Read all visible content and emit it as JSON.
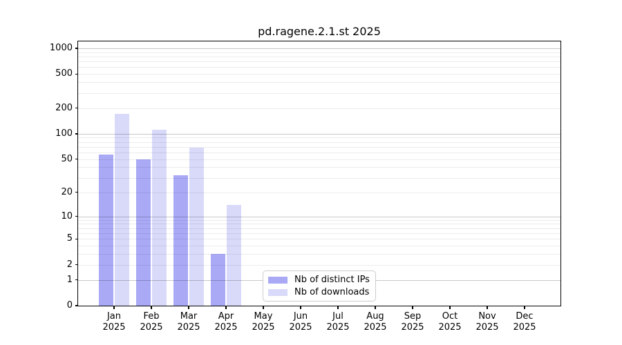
{
  "title": "pd.ragene.2.1.st 2025",
  "legend": {
    "items": [
      {
        "label": "Nb of distinct IPs",
        "series_key": "distinct_ips"
      },
      {
        "label": "Nb of downloads",
        "series_key": "downloads"
      }
    ]
  },
  "colors": {
    "distinct_ips": "#a9a9f6",
    "downloads": "#d9daf9",
    "axis": "#000000",
    "grid_major": "#c8c8c8",
    "grid_minor": "#ececec",
    "legend_border": "#cccccc"
  },
  "chart_data": {
    "type": "bar",
    "title": "pd.ragene.2.1.st 2025",
    "xlabel": "",
    "ylabel": "",
    "y_scale": "log1p",
    "ylim": [
      0,
      1200
    ],
    "grid": "horizontal major+minor, log spacing",
    "legend_position": "lower center-left inside plot",
    "categories": [
      "Jan 2025",
      "Feb 2025",
      "Mar 2025",
      "Apr 2025",
      "May 2025",
      "Jun 2025",
      "Jul 2025",
      "Aug 2025",
      "Sep 2025",
      "Oct 2025",
      "Nov 2025",
      "Dec 2025"
    ],
    "y_ticks": [
      0,
      1,
      2,
      5,
      10,
      20,
      50,
      100,
      200,
      500,
      1000
    ],
    "y_major_gridlines": [
      1,
      10,
      100,
      1000
    ],
    "series": [
      {
        "name": "Nb of distinct IPs",
        "color_key": "distinct_ips",
        "values": [
          57,
          50,
          32,
          3,
          null,
          null,
          null,
          null,
          null,
          null,
          null,
          null
        ]
      },
      {
        "name": "Nb of downloads",
        "color_key": "downloads",
        "values": [
          170,
          112,
          68,
          14,
          null,
          null,
          null,
          null,
          null,
          null,
          null,
          null
        ]
      }
    ]
  }
}
